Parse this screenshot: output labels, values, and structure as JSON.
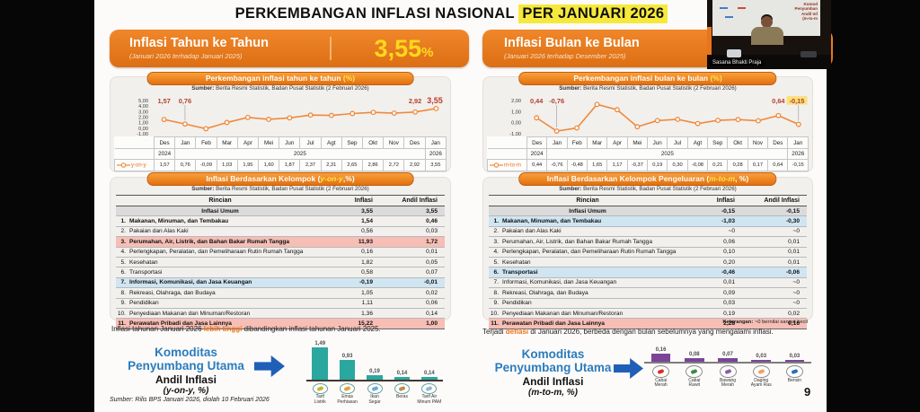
{
  "slide": {
    "title_prefix": "PERKEMBANGAN INFLASI NASIONAL ",
    "title_highlight": "PER JANUARI 2026",
    "page_number": "9",
    "bottom_source": "Sumber: Rilis BPS Januari 2026, diolah 10 Februari 2026"
  },
  "webcam": {
    "name_label": "Sasana Bhakti Praja",
    "screen_lines": [
      "Komod",
      "Penyumban",
      "Andil Inf",
      "(m-to-m"
    ]
  },
  "yoy": {
    "header": {
      "title": "Inflasi Tahun ke Tahun",
      "subtitle": "(Januari 2026 terhadap Januari 2025)",
      "value": "3,55",
      "percent": "%"
    },
    "note": {
      "pre": "Inflasi tahunan Januari 2026 ",
      "accent": "lebih tinggi",
      "post": " dibandingkan inflasi tahunan Januari 2025."
    },
    "komoditas": {
      "line1": "Komoditas",
      "line2": "Penyumbang Utama",
      "line3": "Andil Inflasi",
      "line4": "(y-on-y, %)"
    }
  },
  "mtm": {
    "header": {
      "title": "Inflasi Bulan ke Bulan",
      "subtitle": "(Januari 2026 terhadap Desember 2025)"
    },
    "note": {
      "pre": "Terjadi ",
      "accent": "deflasi",
      "post": " di Januari 2026, berbeda dengan bulan sebelumnya yang mengalami inflasi."
    },
    "footnote": {
      "label": "Keterangan:",
      "text": " ~0 bernilai sangat kecil"
    },
    "komoditas": {
      "line1": "Komoditas",
      "line2": "Penyumbang Utama",
      "line3": "Andil Inflasi",
      "line4": "(m-to-m, %)"
    }
  },
  "colors": {
    "accent_orange": "#e8741c",
    "highlight_yellow": "#f6e93c",
    "value_yellow": "#ffd91e",
    "line_orange": "#ee8a3d",
    "teal_bar": "#2aa79f",
    "purple_bar": "#7a4596",
    "blue_heading": "#2b7cbe",
    "pink_row": "#f6beb5",
    "blue_row": "#cfe5f2"
  },
  "chart_data": [
    {
      "id": "yoy_line",
      "type": "line",
      "title_pre": "Perkembangan inflasi tahun ke tahun ",
      "title_accent": "(%)",
      "source_label": "Sumber:",
      "source_rest": " Berita Resmi Statistik, Badan Pusat Statistik (2 Februari 2026)",
      "series_name": "y-on-y",
      "categories": [
        "Des",
        "Jan",
        "Feb",
        "Mar",
        "Apr",
        "Mei",
        "Jun",
        "Jul",
        "Agt",
        "Sep",
        "Okt",
        "Nov",
        "Des",
        "Jan"
      ],
      "year_row": [
        {
          "label": "2024",
          "span": 1
        },
        {
          "label": "2025",
          "span": 12
        },
        {
          "label": "2026",
          "span": 1
        }
      ],
      "values": [
        1.57,
        0.76,
        -0.09,
        1.03,
        1.95,
        1.6,
        1.87,
        2.37,
        2.31,
        2.65,
        2.86,
        2.72,
        2.92,
        3.55
      ],
      "display_values": [
        "1,57",
        "0,76",
        "-0,09",
        "1,03",
        "1,95",
        "1,60",
        "1,87",
        "2,37",
        "2,31",
        "2,65",
        "2,86",
        "2,72",
        "2,92",
        "3,55"
      ],
      "ylim": [
        -1,
        5
      ],
      "yticks": [
        {
          "label": "5,00",
          "v": 5
        },
        {
          "label": "4,00",
          "v": 4
        },
        {
          "label": "3,00",
          "v": 3
        },
        {
          "label": "2,00",
          "v": 2
        },
        {
          "label": "1,00",
          "v": 1
        },
        {
          "label": "0,00",
          "v": 0
        },
        {
          "label": "-1,00",
          "v": -1
        }
      ],
      "point_labels": [
        {
          "i": 0,
          "text": "1,57"
        },
        {
          "i": 1,
          "text": "0,76"
        },
        {
          "i": 12,
          "text": "2,92"
        },
        {
          "i": 13,
          "text": "3,55",
          "style": "big"
        }
      ],
      "line_color": "#ee8a3d"
    },
    {
      "id": "yoy_groups",
      "type": "table",
      "title_pre": "Inflasi Berdasarkan Kelompok (",
      "title_accent": "y-on-y",
      "title_post": ",%)",
      "source_label": "Sumber:",
      "source_rest": " Berita Resmi Statistik, Badan Pusat Statistik (2 Februari 2026)",
      "columns": [
        "Rincian",
        "Inflasi",
        "Andil Inflasi"
      ],
      "rows": [
        {
          "no": "",
          "name": "Inflasi Umum",
          "inflasi": "3,55",
          "andil": "3,55",
          "style": "umum"
        },
        {
          "no": "1.",
          "name": "Makanan, Minuman, dan Tembakau",
          "inflasi": "1,54",
          "andil": "0,46",
          "style": "bold"
        },
        {
          "no": "2.",
          "name": "Pakaian dan Alas Kaki",
          "inflasi": "0,56",
          "andil": "0,03",
          "style": "plain"
        },
        {
          "no": "3.",
          "name": "Perumahan, Air, Listrik, dan Bahan Bakar Rumah Tangga",
          "inflasi": "11,93",
          "andil": "1,72",
          "style": "pink"
        },
        {
          "no": "4.",
          "name": "Perlengkapan, Peralatan, dan Pemeliharaan Rutin Rumah Tangga",
          "inflasi": "0,16",
          "andil": "0,01",
          "style": "plain"
        },
        {
          "no": "5.",
          "name": "Kesehatan",
          "inflasi": "1,82",
          "andil": "0,05",
          "style": "plain"
        },
        {
          "no": "6.",
          "name": "Transportasi",
          "inflasi": "0,58",
          "andil": "0,07",
          "style": "plain"
        },
        {
          "no": "7.",
          "name": "Informasi, Komunikasi, dan Jasa Keuangan",
          "inflasi": "-0,19",
          "andil": "-0,01",
          "style": "blue"
        },
        {
          "no": "8.",
          "name": "Rekreasi, Olahraga, dan Budaya",
          "inflasi": "1,05",
          "andil": "0,02",
          "style": "plain"
        },
        {
          "no": "9.",
          "name": "Pendidikan",
          "inflasi": "1,11",
          "andil": "0,06",
          "style": "plain"
        },
        {
          "no": "10.",
          "name": "Penyediaan Makanan dan Minuman/Restoran",
          "inflasi": "1,36",
          "andil": "0,14",
          "style": "plain"
        },
        {
          "no": "11.",
          "name": "Perawatan Pribadi dan Jasa Lainnya",
          "inflasi": "15,22",
          "andil": "1,00",
          "style": "pink"
        }
      ]
    },
    {
      "id": "yoy_commodities",
      "type": "bar",
      "values": [
        1.49,
        0.93,
        0.19,
        0.14,
        0.14
      ],
      "display_values": [
        "1,49",
        "0,93",
        "0,19",
        "0,14",
        "0,14"
      ],
      "categories": [
        "Tarif\nListrik",
        "Emas\nPerhiasan",
        "Ikan\nSegar",
        "Beras",
        "Tarif Air\nMinum PAM"
      ],
      "bar_color": "#2aa79f",
      "icons": [
        {
          "name": "electricity-icon",
          "color": "#c9b337"
        },
        {
          "name": "gold-jewelry-icon",
          "color": "#e0a33a"
        },
        {
          "name": "fish-icon",
          "color": "#6aa9dc"
        },
        {
          "name": "rice-icon",
          "color": "#c8874a"
        },
        {
          "name": "water-tap-icon",
          "color": "#9ab4d0"
        }
      ]
    },
    {
      "id": "mtm_line",
      "type": "line",
      "title_pre": "Perkembangan inflasi bulan ke bulan ",
      "title_accent": "(%)",
      "source_label": "Sumber:",
      "source_rest": " Berita Resmi Statistik, Badan Pusat Statistik (2 Februari 2026)",
      "series_name": "m-to-m",
      "categories": [
        "Des",
        "Jan",
        "Feb",
        "Mar",
        "Apr",
        "Mei",
        "Jun",
        "Jul",
        "Agt",
        "Sep",
        "Okt",
        "Nov",
        "Des",
        "Jan"
      ],
      "year_row": [
        {
          "label": "2024",
          "span": 1
        },
        {
          "label": "2025",
          "span": 12
        },
        {
          "label": "2026",
          "span": 1
        }
      ],
      "values": [
        0.44,
        -0.76,
        -0.48,
        1.65,
        1.17,
        -0.37,
        0.19,
        0.3,
        -0.08,
        0.21,
        0.28,
        0.17,
        0.64,
        -0.15
      ],
      "display_values": [
        "0,44",
        "-0,76",
        "-0,48",
        "1,65",
        "1,17",
        "-0,37",
        "0,19",
        "0,30",
        "-0,08",
        "0,21",
        "0,28",
        "0,17",
        "0,64",
        "-0,15"
      ],
      "ylim": [
        -1,
        2
      ],
      "yticks": [
        {
          "label": "2,00",
          "v": 2
        },
        {
          "label": "1,00",
          "v": 1
        },
        {
          "label": "0,00",
          "v": 0
        },
        {
          "label": "-1,00",
          "v": -1
        }
      ],
      "point_labels": [
        {
          "i": 0,
          "text": "0,44"
        },
        {
          "i": 1,
          "text": "-0,76"
        },
        {
          "i": 12,
          "text": "0,64"
        },
        {
          "i": 13,
          "text": "-0,15",
          "style": "highlight"
        }
      ],
      "line_color": "#ee8a3d"
    },
    {
      "id": "mtm_groups",
      "type": "table",
      "title_pre": "Inflasi Berdasarkan Kelompok Pengeluaran (",
      "title_accent": "m-to-m",
      "title_post": ", %)",
      "source_label": "Sumber:",
      "source_rest": " Berita Resmi Statistik, Badan Pusat Statistik (2 Februari 2026)",
      "columns": [
        "Rincian",
        "Inflasi",
        "Andil Inflasi"
      ],
      "rows": [
        {
          "no": "",
          "name": "Inflasi Umum",
          "inflasi": "-0,15",
          "andil": "-0,15",
          "style": "umum"
        },
        {
          "no": "1.",
          "name": "Makanan, Minuman, dan Tembakau",
          "inflasi": "-1,03",
          "andil": "-0,30",
          "style": "blue"
        },
        {
          "no": "2.",
          "name": "Pakaian dan Alas Kaki",
          "inflasi": "~0",
          "andil": "~0",
          "style": "plain"
        },
        {
          "no": "3.",
          "name": "Perumahan, Air, Listrik, dan Bahan Bakar Rumah Tangga",
          "inflasi": "0,06",
          "andil": "0,01",
          "style": "plain"
        },
        {
          "no": "4.",
          "name": "Perlengkapan, Peralatan, dan Pemeliharaan Rutin Rumah Tangga",
          "inflasi": "0,10",
          "andil": "0,01",
          "style": "plain"
        },
        {
          "no": "5.",
          "name": "Kesehatan",
          "inflasi": "0,20",
          "andil": "0,01",
          "style": "plain"
        },
        {
          "no": "6.",
          "name": "Transportasi",
          "inflasi": "-0,46",
          "andil": "-0,06",
          "style": "blue"
        },
        {
          "no": "7.",
          "name": "Informasi, Komunikasi, dan Jasa Keuangan",
          "inflasi": "0,01",
          "andil": "~0",
          "style": "plain"
        },
        {
          "no": "8.",
          "name": "Rekreasi, Olahraga, dan Budaya",
          "inflasi": "0,09",
          "andil": "~0",
          "style": "plain"
        },
        {
          "no": "9.",
          "name": "Pendidikan",
          "inflasi": "0,03",
          "andil": "~0",
          "style": "plain"
        },
        {
          "no": "10.",
          "name": "Penyediaan Makanan dan Minuman/Restoran",
          "inflasi": "0,19",
          "andil": "0,02",
          "style": "plain"
        },
        {
          "no": "11.",
          "name": "Perawatan Pribadi dan Jasa Lainnya",
          "inflasi": "2,28",
          "andil": "0,16",
          "style": "pink"
        }
      ]
    },
    {
      "id": "mtm_commodities",
      "type": "bar",
      "values": [
        0.16,
        0.08,
        0.07,
        0.03,
        0.03
      ],
      "display_values": [
        "0,16",
        "0,08",
        "0,07",
        "0,03",
        "0,03"
      ],
      "categories": [
        "Cabai\nMerah",
        "Cabai\nRawit",
        "Bawang\nMerah",
        "Daging\nAyam Ras",
        "Bensin"
      ],
      "bar_color": "#7a4596",
      "icons": [
        {
          "name": "red-chili-icon",
          "color": "#d93025"
        },
        {
          "name": "green-chili-icon",
          "color": "#3d8b3d"
        },
        {
          "name": "shallot-icon",
          "color": "#8e5ba6"
        },
        {
          "name": "chicken-meat-icon",
          "color": "#f2a065"
        },
        {
          "name": "fuel-icon",
          "color": "#2a6fb8"
        }
      ]
    }
  ]
}
